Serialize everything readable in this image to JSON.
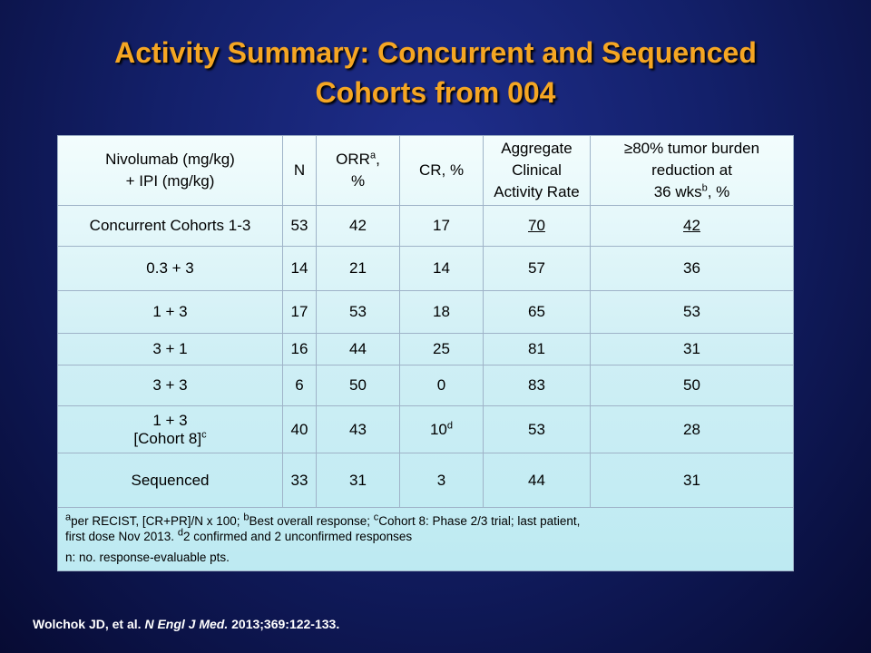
{
  "title": {
    "line1": "Activity Summary: Concurrent and Sequenced",
    "line2": "Cohorts from 004"
  },
  "table": {
    "headers": {
      "col1_line1": "Nivolumab  (mg/kg)",
      "col1_line2": "+ IPI (mg/kg)",
      "col2": "N",
      "col3_main": "ORR",
      "col3_sup": "a",
      "col3_tail": ",",
      "col3_line2": "%",
      "col4": "CR, %",
      "col5_line1": "Aggregate",
      "col5_line2": "Clinical",
      "col5_line3": "Activity Rate",
      "col6_line1": "≥80% tumor burden",
      "col6_line2": "reduction at",
      "col6_line3_main": "36 wks",
      "col6_line3_sup": "b",
      "col6_line3_tail": ", %"
    },
    "rows": [
      {
        "label": "Concurrent Cohorts 1-3",
        "label2": "",
        "label_sup": "",
        "n": "53",
        "orr": "42",
        "cr": "17",
        "cr_sup": "",
        "acar": "70",
        "burden": "42"
      },
      {
        "label": "0.3 + 3",
        "label2": "",
        "label_sup": "",
        "n": "14",
        "orr": "21",
        "cr": "14",
        "cr_sup": "",
        "acar": "57",
        "burden": "36"
      },
      {
        "label": "1 + 3",
        "label2": "",
        "label_sup": "",
        "n": "17",
        "orr": "53",
        "cr": "18",
        "cr_sup": "",
        "acar": "65",
        "burden": "53"
      },
      {
        "label": "3 + 1",
        "label2": "",
        "label_sup": "",
        "n": "16",
        "orr": "44",
        "cr": "25",
        "cr_sup": "",
        "acar": "81",
        "burden": "31"
      },
      {
        "label": "3 + 3",
        "label2": "",
        "label_sup": "",
        "n": "6",
        "orr": "50",
        "cr": "0",
        "cr_sup": "",
        "acar": "83",
        "burden": "50"
      },
      {
        "label": "1 + 3",
        "label2": "[Cohort 8]",
        "label_sup": "c",
        "n": "40",
        "orr": "43",
        "cr": "10",
        "cr_sup": "d",
        "acar": "53",
        "burden": "28"
      },
      {
        "label": "Sequenced",
        "label2": "",
        "label_sup": "",
        "n": "33",
        "orr": "31",
        "cr": "3",
        "cr_sup": "",
        "acar": "44",
        "burden": "31"
      }
    ],
    "footnotes": {
      "line1": {
        "sup_a": "a",
        "text_a": "per RECIST,    [CR+PR]/N  x 100;   ",
        "sup_b": "b",
        "text_b": "Best  overall  response;  ",
        "sup_c": "c",
        "text_c": "Cohort  8:  Phase  2/3  trial;  last  patient,"
      },
      "line2": {
        "text_1": "first  dose  Nov  2013.  ",
        "sup_d": "d",
        "text_2": "2  confirmed  and  2  unconfirmed  responses"
      },
      "line3": "n:  no.  response-evaluable  pts."
    }
  },
  "citation": {
    "authors": "Wolchok JD, et al. ",
    "journal": "N Engl J Med.",
    "details": " 2013;369:122-133."
  },
  "colors": {
    "title": "#f5a623",
    "background": "#13206a",
    "table_top": "#f3fdfd",
    "table_bottom": "#bdeaf2"
  }
}
